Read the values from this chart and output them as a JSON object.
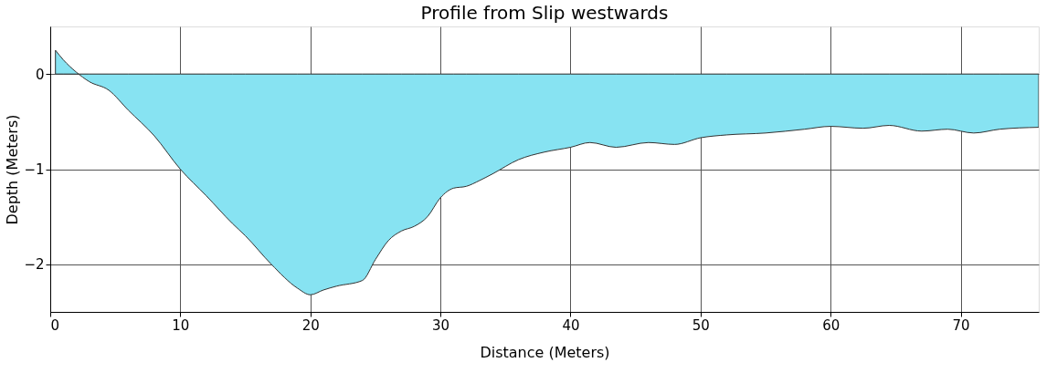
{
  "chart_data": {
    "type": "area",
    "title": "Profile from Slip westwards",
    "xlabel": "Distance (Meters)",
    "ylabel": "Depth (Meters)",
    "series": [
      {
        "color": "#87e3f2",
        "x": [
          0.4,
          1,
          2,
          3,
          4.5,
          6,
          8,
          10,
          12,
          14,
          15,
          17,
          19,
          20,
          21,
          22,
          24,
          25,
          26,
          27,
          28,
          29,
          30,
          31,
          32,
          33,
          34,
          36,
          38,
          40,
          41.5,
          43.5,
          46,
          48,
          50,
          52,
          55,
          58,
          60,
          62.5,
          64.5,
          67,
          69,
          71,
          73,
          76
        ],
        "values": [
          0.25,
          0.15,
          0.02,
          -0.08,
          -0.17,
          -0.38,
          -0.65,
          -1.0,
          -1.28,
          -1.57,
          -1.7,
          -2.0,
          -2.25,
          -2.32,
          -2.27,
          -2.23,
          -2.17,
          -1.95,
          -1.75,
          -1.65,
          -1.6,
          -1.5,
          -1.3,
          -1.2,
          -1.18,
          -1.12,
          -1.05,
          -0.9,
          -0.82,
          -0.77,
          -0.72,
          -0.77,
          -0.72,
          -0.74,
          -0.67,
          -0.64,
          -0.62,
          -0.58,
          -0.55,
          -0.57,
          -0.54,
          -0.6,
          -0.58,
          -0.62,
          -0.58,
          -0.56
        ]
      }
    ],
    "xlim": [
      0,
      76
    ],
    "xticks": [
      0,
      10,
      20,
      30,
      40,
      50,
      60,
      70
    ],
    "ylim": [
      -2.5,
      0.5
    ],
    "yticks": [
      -2,
      -1,
      0
    ],
    "grid": true
  }
}
